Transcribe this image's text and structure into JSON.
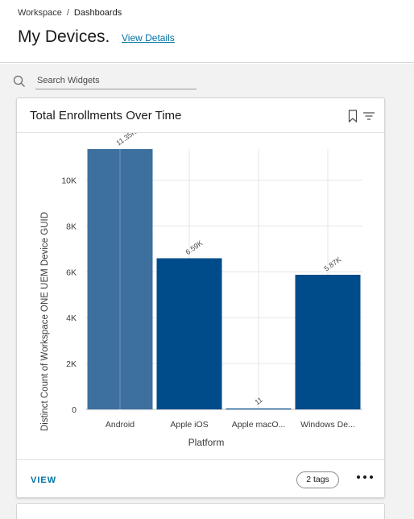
{
  "breadcrumb": {
    "root": "Workspace",
    "separator": "/",
    "current": "Dashboards"
  },
  "page": {
    "title": "My Devices.",
    "view_details": "View Details"
  },
  "search": {
    "placeholder": "Search Widgets",
    "value": ""
  },
  "widget": {
    "title": "Total Enrollments Over Time",
    "view_label": "VIEW",
    "tags_label": "2 tags",
    "icons": [
      "bookmark-icon",
      "filter-icon",
      "more-icon"
    ]
  },
  "colors": {
    "bar": "#004c8a",
    "bar_highlight": "#3d6f9f",
    "link": "#0072a3"
  },
  "chart_data": {
    "type": "bar",
    "categories": [
      "Android",
      "Apple iOS",
      "Apple macO...",
      "Windows De..."
    ],
    "values": [
      11350,
      6590,
      11,
      5870
    ],
    "data_labels": [
      "11.35K",
      "6.59K",
      "11",
      "5.87K"
    ],
    "highlighted_index": 0,
    "xlabel": "Platform",
    "ylabel": "Distinct Count of Workspace ONE UEM Device GUID",
    "ylim": [
      0,
      11350
    ],
    "yticks": [
      0,
      2000,
      4000,
      6000,
      8000,
      10000
    ],
    "ytick_labels": [
      "0",
      "2K",
      "4K",
      "6K",
      "8K",
      "10K"
    ],
    "grid": true
  }
}
